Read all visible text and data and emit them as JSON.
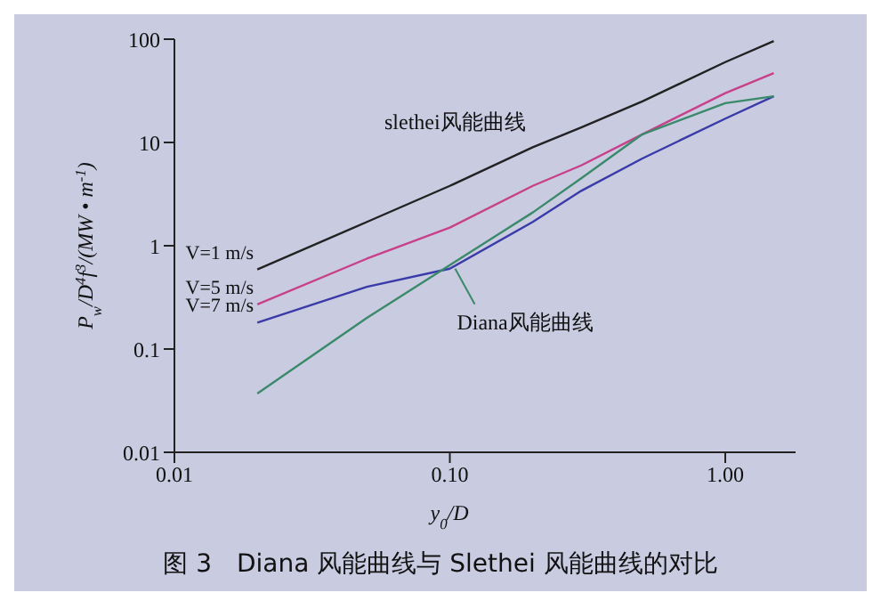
{
  "chart_data": {
    "type": "line",
    "title": "图 3　Diana 风能曲线与 Slethei 风能曲线的对比",
    "xlabel": "y$_{0}$/D",
    "ylabel": "P$_{w}$/D$^{4}$f$^{3}$/(MW • m$^{-1}$)",
    "log": "xy",
    "xlim": [
      0.01,
      1.8
    ],
    "ylim": [
      0.01,
      100
    ],
    "xticks": [
      0.01,
      {
        "value": 0.1,
        "label": "0.10"
      },
      {
        "value": 1,
        "label": "1.00"
      }
    ],
    "yticks": [
      0.01,
      0.1,
      1,
      10,
      100
    ],
    "marker": "none",
    "line_style": "solid",
    "x": [
      0.02,
      0.05,
      0.1,
      0.2,
      0.3,
      0.5,
      1,
      1.5
    ],
    "series": [
      {
        "name": "V=1 m/s",
        "color": "#222222",
        "values": [
          0.59,
          1.7,
          3.8,
          9,
          14,
          25,
          60,
          96
        ]
      },
      {
        "name": "V=5 m/s",
        "color": "#c8408a",
        "values": [
          0.27,
          0.75,
          1.5,
          3.8,
          6,
          12,
          30,
          47
        ]
      },
      {
        "name": "V=7 m/s",
        "color": "#3a3aa8",
        "values": [
          0.18,
          0.4,
          0.6,
          1.7,
          3.4,
          7,
          17,
          28
        ]
      },
      {
        "name": "Diana风能曲线",
        "color": "#3a8a6a",
        "values": [
          0.037,
          0.2,
          0.65,
          2.1,
          4.5,
          12,
          24,
          28
        ]
      }
    ],
    "annotations": [
      {
        "text": "slethei风能曲线",
        "x": 0.2,
        "y": 9
      }
    ]
  }
}
